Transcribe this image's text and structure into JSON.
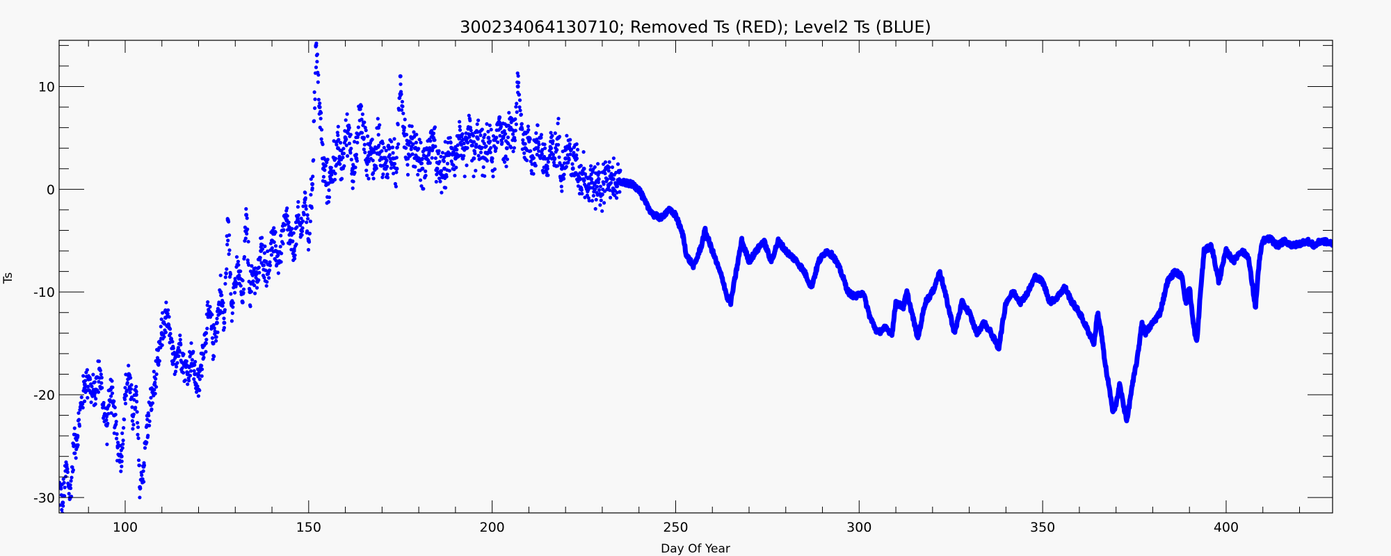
{
  "chart_data": {
    "type": "scatter",
    "title": "300234064130710; Removed Ts (RED); Level2 Ts (BLUE)",
    "xlabel": "Day Of Year",
    "ylabel": "Ts",
    "xlim": [
      82,
      429
    ],
    "ylim": [
      -31.5,
      14.5
    ],
    "xticks": [
      100,
      150,
      200,
      250,
      300,
      350,
      400
    ],
    "yticks": [
      -30,
      -20,
      -10,
      0,
      10
    ],
    "x_minor_step": 10,
    "y_minor_step": 2,
    "grid": false,
    "legend": "none",
    "series": [
      {
        "color": "#0000ff",
        "noisy_segment": {
          "x_range": [
            82,
            235
          ],
          "points": [
            [
              82,
              -29
            ],
            [
              83,
              -30.5
            ],
            [
              84,
              -27
            ],
            [
              85,
              -30
            ],
            [
              86,
              -25
            ],
            [
              87,
              -24
            ],
            [
              88,
              -21
            ],
            [
              89,
              -19
            ],
            [
              90,
              -18.5
            ],
            [
              91,
              -20
            ],
            [
              92,
              -19.5
            ],
            [
              93,
              -17.5
            ],
            [
              94,
              -21
            ],
            [
              95,
              -23
            ],
            [
              96,
              -19.5
            ],
            [
              97,
              -22
            ],
            [
              98,
              -25
            ],
            [
              99,
              -26
            ],
            [
              100,
              -20
            ],
            [
              101,
              -18
            ],
            [
              102,
              -22
            ],
            [
              103,
              -20
            ],
            [
              104,
              -29
            ],
            [
              105,
              -27
            ],
            [
              106,
              -23
            ],
            [
              107,
              -21
            ],
            [
              108,
              -19
            ],
            [
              109,
              -17
            ],
            [
              110,
              -14
            ],
            [
              111,
              -12.5
            ],
            [
              112,
              -13.5
            ],
            [
              113,
              -17
            ],
            [
              114,
              -16
            ],
            [
              115,
              -15
            ],
            [
              116,
              -17
            ],
            [
              117,
              -18
            ],
            [
              118,
              -16
            ],
            [
              119,
              -18
            ],
            [
              120,
              -19.5
            ],
            [
              121,
              -16
            ],
            [
              122,
              -14
            ],
            [
              123,
              -12
            ],
            [
              124,
              -15
            ],
            [
              125,
              -13
            ],
            [
              126,
              -10
            ],
            [
              127,
              -13
            ],
            [
              128,
              -3
            ],
            [
              129,
              -11
            ],
            [
              130,
              -9
            ],
            [
              131,
              -8
            ],
            [
              132,
              -11
            ],
            [
              133,
              -2.5
            ],
            [
              134,
              -10
            ],
            [
              135,
              -8
            ],
            [
              136,
              -9
            ],
            [
              137,
              -6
            ],
            [
              138,
              -7
            ],
            [
              139,
              -8
            ],
            [
              140,
              -5
            ],
            [
              141,
              -6
            ],
            [
              142,
              -7
            ],
            [
              143,
              -4
            ],
            [
              144,
              -3
            ],
            [
              145,
              -5
            ],
            [
              146,
              -6
            ],
            [
              147,
              -3
            ],
            [
              148,
              -4
            ],
            [
              149,
              -1
            ],
            [
              150,
              -5
            ],
            [
              151,
              0.5
            ],
            [
              152,
              14
            ],
            [
              153,
              8
            ],
            [
              154,
              2
            ],
            [
              155,
              0.5
            ],
            [
              156,
              1
            ],
            [
              157,
              3
            ],
            [
              158,
              4
            ],
            [
              159,
              2
            ],
            [
              160,
              5
            ],
            [
              161,
              6
            ],
            [
              162,
              2
            ],
            [
              163,
              3
            ],
            [
              164,
              8
            ],
            [
              165,
              5
            ],
            [
              166,
              3
            ],
            [
              167,
              4
            ],
            [
              168,
              2
            ],
            [
              169,
              6
            ],
            [
              170,
              3
            ],
            [
              171,
              2
            ],
            [
              172,
              4
            ],
            [
              173,
              3
            ],
            [
              174,
              2
            ],
            [
              175,
              11
            ],
            [
              176,
              6
            ],
            [
              177,
              3
            ],
            [
              178,
              5
            ],
            [
              179,
              4
            ],
            [
              180,
              3
            ],
            [
              181,
              2
            ],
            [
              182,
              3
            ],
            [
              183,
              4
            ],
            [
              184,
              5
            ],
            [
              185,
              2
            ],
            [
              186,
              1.5
            ],
            [
              187,
              2
            ],
            [
              189,
              4
            ],
            [
              190,
              3
            ],
            [
              191,
              5
            ],
            [
              192,
              3
            ],
            [
              193,
              4
            ],
            [
              194,
              6
            ],
            [
              195,
              3
            ],
            [
              196,
              5
            ],
            [
              197,
              4
            ],
            [
              198,
              3
            ],
            [
              199,
              5
            ],
            [
              200,
              3
            ],
            [
              201,
              4
            ],
            [
              202,
              7
            ],
            [
              203,
              5
            ],
            [
              204,
              4
            ],
            [
              205,
              6
            ],
            [
              206,
              5
            ],
            [
              207,
              10
            ],
            [
              208,
              6
            ],
            [
              209,
              4
            ],
            [
              210,
              5
            ],
            [
              211,
              3
            ],
            [
              212,
              4
            ],
            [
              213,
              5
            ],
            [
              214,
              3
            ],
            [
              215,
              2
            ],
            [
              216,
              4
            ],
            [
              217,
              3
            ],
            [
              218,
              5
            ],
            [
              219,
              2
            ],
            [
              220,
              3
            ],
            [
              221,
              4
            ],
            [
              222,
              2
            ],
            [
              223,
              3
            ],
            [
              224,
              1
            ],
            [
              225,
              2
            ],
            [
              226,
              0
            ],
            [
              227,
              1
            ],
            [
              228,
              0
            ],
            [
              229,
              1
            ],
            [
              230,
              -0.5
            ],
            [
              231,
              2
            ],
            [
              232,
              0.5
            ],
            [
              233,
              1
            ],
            [
              234,
              0.5
            ],
            [
              235,
              0.8
            ]
          ]
        },
        "smooth_segment": {
          "x_range": [
            235,
            429
          ],
          "points": [
            [
              235,
              0.7
            ],
            [
              238,
              0.5
            ],
            [
              240,
              0
            ],
            [
              242,
              -1.5
            ],
            [
              244,
              -2.5
            ],
            [
              246,
              -2.8
            ],
            [
              248,
              -2
            ],
            [
              250,
              -2.5
            ],
            [
              252,
              -4.5
            ],
            [
              253,
              -6.5
            ],
            [
              255,
              -7.5
            ],
            [
              256,
              -6.5
            ],
            [
              257,
              -5.5
            ],
            [
              258,
              -4
            ],
            [
              259,
              -5
            ],
            [
              260,
              -6
            ],
            [
              261,
              -7
            ],
            [
              262,
              -8
            ],
            [
              263,
              -9
            ],
            [
              264,
              -10.5
            ],
            [
              265,
              -11
            ],
            [
              266,
              -9
            ],
            [
              267,
              -7
            ],
            [
              268,
              -5
            ],
            [
              270,
              -7
            ],
            [
              272,
              -6
            ],
            [
              274,
              -5
            ],
            [
              275,
              -6
            ],
            [
              276,
              -7
            ],
            [
              278,
              -5
            ],
            [
              280,
              -6
            ],
            [
              283,
              -7
            ],
            [
              285,
              -8
            ],
            [
              287,
              -9.5
            ],
            [
              289,
              -7
            ],
            [
              291,
              -6
            ],
            [
              293,
              -6.5
            ],
            [
              295,
              -8
            ],
            [
              297,
              -10
            ],
            [
              299,
              -10.5
            ],
            [
              301,
              -10
            ],
            [
              303,
              -12.5
            ],
            [
              305,
              -14
            ],
            [
              307,
              -13.5
            ],
            [
              309,
              -14
            ],
            [
              310,
              -11
            ],
            [
              312,
              -11.5
            ],
            [
              313,
              -10
            ],
            [
              315,
              -13
            ],
            [
              316,
              -14.5
            ],
            [
              318,
              -11
            ],
            [
              320,
              -10
            ],
            [
              322,
              -8
            ],
            [
              324,
              -11
            ],
            [
              326,
              -14
            ],
            [
              328,
              -11
            ],
            [
              330,
              -12
            ],
            [
              332,
              -14
            ],
            [
              334,
              -13
            ],
            [
              336,
              -14
            ],
            [
              338,
              -15.5
            ],
            [
              340,
              -11
            ],
            [
              342,
              -10
            ],
            [
              344,
              -11
            ],
            [
              346,
              -10
            ],
            [
              348,
              -8.5
            ],
            [
              350,
              -9
            ],
            [
              352,
              -11
            ],
            [
              354,
              -10.5
            ],
            [
              356,
              -9.5
            ],
            [
              358,
              -11
            ],
            [
              360,
              -12
            ],
            [
              362,
              -13.5
            ],
            [
              364,
              -15
            ],
            [
              365,
              -12
            ],
            [
              366,
              -14
            ],
            [
              367,
              -17
            ],
            [
              368,
              -19
            ],
            [
              369,
              -21.5
            ],
            [
              370,
              -21
            ],
            [
              371,
              -19
            ],
            [
              372,
              -21
            ],
            [
              373,
              -22.5
            ],
            [
              374,
              -20
            ],
            [
              375,
              -18
            ],
            [
              376,
              -16
            ],
            [
              377,
              -13
            ],
            [
              378,
              -14
            ],
            [
              380,
              -13
            ],
            [
              382,
              -12
            ],
            [
              384,
              -9
            ],
            [
              386,
              -8
            ],
            [
              388,
              -8.5
            ],
            [
              389,
              -11
            ],
            [
              390,
              -9.5
            ],
            [
              391,
              -13
            ],
            [
              392,
              -15
            ],
            [
              393,
              -10
            ],
            [
              394,
              -6
            ],
            [
              396,
              -5.5
            ],
            [
              398,
              -9
            ],
            [
              400,
              -6
            ],
            [
              402,
              -7
            ],
            [
              404,
              -6
            ],
            [
              406,
              -6.5
            ],
            [
              407,
              -9
            ],
            [
              408,
              -11.5
            ],
            [
              409,
              -7
            ],
            [
              410,
              -5
            ],
            [
              412,
              -4.8
            ],
            [
              414,
              -5.5
            ],
            [
              416,
              -5
            ],
            [
              418,
              -5.5
            ],
            [
              420,
              -5.3
            ],
            [
              422,
              -5
            ],
            [
              424,
              -5.5
            ],
            [
              426,
              -5
            ],
            [
              429,
              -5.3
            ]
          ]
        }
      }
    ]
  }
}
